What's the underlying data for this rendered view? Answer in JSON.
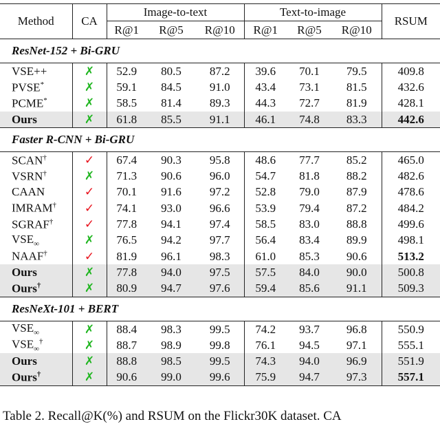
{
  "header": {
    "method": "Method",
    "ca": "CA",
    "groups": [
      "Image-to-text",
      "Text-to-image"
    ],
    "metrics": [
      "R@1",
      "R@5",
      "R@10",
      "R@1",
      "R@5",
      "R@10"
    ],
    "rsum": "RSUM"
  },
  "ca_colors": {
    "✓": "#e8111b",
    "✗": "#1fb51f"
  },
  "sections": [
    {
      "title": "ResNet-152 + Bi-GRU",
      "rows": [
        {
          "method": {
            "name": "VSE++"
          },
          "ca": "✗",
          "values": [
            "52.9",
            "80.5",
            "87.2",
            "39.6",
            "70.1",
            "79.5"
          ],
          "rsum": "409.8"
        },
        {
          "method": {
            "name": "PVSE",
            "sup": "*"
          },
          "ca": "✗",
          "values": [
            "59.1",
            "84.5",
            "91.0",
            "43.4",
            "73.1",
            "81.5"
          ],
          "rsum": "432.6"
        },
        {
          "method": {
            "name": "PCME",
            "sup": "*"
          },
          "ca": "✗",
          "values": [
            "58.5",
            "81.4",
            "89.3",
            "44.3",
            "72.7",
            "81.9"
          ],
          "rsum": "428.1"
        },
        {
          "method": {
            "name": "Ours"
          },
          "ca": "✗",
          "values": [
            "61.8",
            "85.5",
            "91.1",
            "46.1",
            "74.8",
            "83.3"
          ],
          "rsum": "442.6",
          "highlight": true,
          "bold_rsum": true
        }
      ]
    },
    {
      "title": "Faster R-CNN + Bi-GRU",
      "rows": [
        {
          "method": {
            "name": "SCAN",
            "sup": "†"
          },
          "ca": "✓",
          "values": [
            "67.4",
            "90.3",
            "95.8",
            "48.6",
            "77.7",
            "85.2"
          ],
          "rsum": "465.0"
        },
        {
          "method": {
            "name": "VSRN",
            "sup": "†"
          },
          "ca": "✗",
          "values": [
            "71.3",
            "90.6",
            "96.0",
            "54.7",
            "81.8",
            "88.2"
          ],
          "rsum": "482.6"
        },
        {
          "method": {
            "name": "CAAN"
          },
          "ca": "✓",
          "values": [
            "70.1",
            "91.6",
            "97.2",
            "52.8",
            "79.0",
            "87.9"
          ],
          "rsum": "478.6"
        },
        {
          "method": {
            "name": "IMRAM",
            "sup": "†"
          },
          "ca": "✓",
          "values": [
            "74.1",
            "93.0",
            "96.6",
            "53.9",
            "79.4",
            "87.2"
          ],
          "rsum": "484.2"
        },
        {
          "method": {
            "name": "SGRAF",
            "sup": "†"
          },
          "ca": "✓",
          "values": [
            "77.8",
            "94.1",
            "97.4",
            "58.5",
            "83.0",
            "88.8"
          ],
          "rsum": "499.6"
        },
        {
          "method": {
            "name": "VSE",
            "sub": "∞"
          },
          "ca": "✗",
          "values": [
            "76.5",
            "94.2",
            "97.7",
            "56.4",
            "83.4",
            "89.9"
          ],
          "rsum": "498.1"
        },
        {
          "method": {
            "name": "NAAF",
            "sup": "†"
          },
          "ca": "✓",
          "values": [
            "81.9",
            "96.1",
            "98.3",
            "61.0",
            "85.3",
            "90.6"
          ],
          "rsum": "513.2",
          "bold_rsum": true
        },
        {
          "method": {
            "name": "Ours"
          },
          "ca": "✗",
          "values": [
            "77.8",
            "94.0",
            "97.5",
            "57.5",
            "84.0",
            "90.0"
          ],
          "rsum": "500.8",
          "highlight": true
        },
        {
          "method": {
            "name": "Ours",
            "sup": "†"
          },
          "ca": "✗",
          "values": [
            "80.9",
            "94.7",
            "97.6",
            "59.4",
            "85.6",
            "91.1"
          ],
          "rsum": "509.3",
          "highlight": true
        }
      ]
    },
    {
      "title": "ResNeXt-101 + BERT",
      "rows": [
        {
          "method": {
            "name": "VSE",
            "sub": "∞"
          },
          "ca": "✗",
          "values": [
            "88.4",
            "98.3",
            "99.5",
            "74.2",
            "93.7",
            "96.8"
          ],
          "rsum": "550.9"
        },
        {
          "method": {
            "name": "VSE",
            "sub": "∞",
            "sup": "†"
          },
          "ca": "✗",
          "values": [
            "88.7",
            "98.9",
            "99.8",
            "76.1",
            "94.5",
            "97.1"
          ],
          "rsum": "555.1"
        },
        {
          "method": {
            "name": "Ours"
          },
          "ca": "✗",
          "values": [
            "88.8",
            "98.5",
            "99.5",
            "74.3",
            "94.0",
            "96.9"
          ],
          "rsum": "551.9",
          "highlight": true
        },
        {
          "method": {
            "name": "Ours",
            "sup": "†"
          },
          "ca": "✗",
          "values": [
            "90.6",
            "99.0",
            "99.6",
            "75.9",
            "94.7",
            "97.3"
          ],
          "rsum": "557.1",
          "highlight": true,
          "bold_rsum": true
        }
      ]
    }
  ],
  "caption": "Table 2. Recall@K(%) and RSUM on the Flickr30K dataset. CA"
}
